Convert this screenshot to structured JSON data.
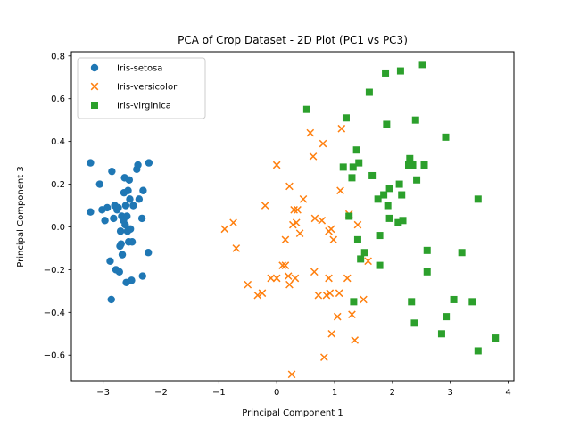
{
  "chart_data": {
    "type": "scatter",
    "title": "PCA of Crop Dataset - 2D Plot (PC1 vs PC3)",
    "xlabel": "Principal Component 1",
    "ylabel": "Principal Component 3",
    "xlim": [
      -3.55,
      4.1
    ],
    "ylim": [
      -0.72,
      0.82
    ],
    "xticks": [
      -3,
      -2,
      -1,
      0,
      1,
      2,
      3,
      4
    ],
    "yticks": [
      -0.6,
      -0.4,
      -0.2,
      0.0,
      0.2,
      0.4,
      0.6,
      0.8
    ],
    "grid": false,
    "legend_position": "upper-left",
    "series": [
      {
        "name": "Iris-setosa",
        "marker": "circle",
        "color": "#1f77b4",
        "points": [
          [
            -3.22,
            0.3
          ],
          [
            -3.22,
            0.07
          ],
          [
            -3.06,
            0.2
          ],
          [
            -3.02,
            0.08
          ],
          [
            -2.97,
            0.03
          ],
          [
            -2.93,
            0.09
          ],
          [
            -2.88,
            -0.16
          ],
          [
            -2.86,
            -0.34
          ],
          [
            -2.85,
            0.26
          ],
          [
            -2.82,
            0.04
          ],
          [
            -2.8,
            0.1
          ],
          [
            -2.78,
            -0.2
          ],
          [
            -2.76,
            0.08
          ],
          [
            -2.74,
            0.09
          ],
          [
            -2.72,
            -0.21
          ],
          [
            -2.71,
            -0.09
          ],
          [
            -2.7,
            -0.02
          ],
          [
            -2.69,
            -0.08
          ],
          [
            -2.68,
            0.05
          ],
          [
            -2.67,
            -0.13
          ],
          [
            -2.65,
            0.03
          ],
          [
            -2.64,
            0.16
          ],
          [
            -2.63,
            0.23
          ],
          [
            -2.62,
            0.01
          ],
          [
            -2.61,
            0.1
          ],
          [
            -2.6,
            -0.26
          ],
          [
            -2.59,
            0.05
          ],
          [
            -2.58,
            -0.02
          ],
          [
            -2.57,
            0.17
          ],
          [
            -2.56,
            -0.07
          ],
          [
            -2.55,
            0.22
          ],
          [
            -2.54,
            0.13
          ],
          [
            -2.53,
            -0.01
          ],
          [
            -2.51,
            -0.25
          ],
          [
            -2.5,
            -0.07
          ],
          [
            -2.48,
            0.1
          ],
          [
            -2.42,
            0.27
          ],
          [
            -2.4,
            0.29
          ],
          [
            -2.38,
            0.13
          ],
          [
            -2.33,
            0.04
          ],
          [
            -2.32,
            -0.23
          ],
          [
            -2.31,
            0.17
          ],
          [
            -2.22,
            -0.12
          ],
          [
            -2.21,
            0.3
          ]
        ]
      },
      {
        "name": "Iris-versicolor",
        "marker": "x",
        "color": "#ff7f0e",
        "points": [
          [
            -0.9,
            -0.01
          ],
          [
            -0.75,
            0.02
          ],
          [
            -0.7,
            -0.1
          ],
          [
            -0.5,
            -0.27
          ],
          [
            -0.33,
            -0.32
          ],
          [
            -0.25,
            -0.31
          ],
          [
            -0.2,
            0.1
          ],
          [
            -0.1,
            -0.24
          ],
          [
            0.0,
            0.29
          ],
          [
            0.0,
            -0.24
          ],
          [
            0.1,
            -0.18
          ],
          [
            0.15,
            -0.18
          ],
          [
            0.15,
            -0.06
          ],
          [
            0.2,
            -0.23
          ],
          [
            0.22,
            0.19
          ],
          [
            0.22,
            -0.27
          ],
          [
            0.28,
            0.01
          ],
          [
            0.3,
            0.08
          ],
          [
            0.32,
            -0.24
          ],
          [
            0.34,
            0.02
          ],
          [
            0.36,
            0.08
          ],
          [
            0.4,
            -0.03
          ],
          [
            0.46,
            0.13
          ],
          [
            0.26,
            -0.69
          ],
          [
            0.58,
            0.44
          ],
          [
            0.63,
            0.33
          ],
          [
            0.65,
            -0.21
          ],
          [
            0.66,
            0.04
          ],
          [
            0.72,
            -0.32
          ],
          [
            0.78,
            0.03
          ],
          [
            0.8,
            0.39
          ],
          [
            0.82,
            -0.61
          ],
          [
            0.86,
            -0.32
          ],
          [
            0.9,
            -0.02
          ],
          [
            0.9,
            -0.24
          ],
          [
            0.92,
            -0.31
          ],
          [
            0.94,
            -0.01
          ],
          [
            0.95,
            -0.5
          ],
          [
            0.98,
            -0.06
          ],
          [
            1.05,
            -0.42
          ],
          [
            1.08,
            -0.31
          ],
          [
            1.1,
            0.17
          ],
          [
            1.12,
            0.46
          ],
          [
            1.22,
            -0.24
          ],
          [
            1.25,
            0.06
          ],
          [
            1.3,
            -0.41
          ],
          [
            1.35,
            -0.53
          ],
          [
            1.4,
            0.01
          ],
          [
            1.5,
            -0.34
          ],
          [
            1.58,
            -0.16
          ]
        ]
      },
      {
        "name": "Iris-virginica",
        "marker": "square",
        "color": "#2ca02c",
        "points": [
          [
            0.52,
            0.55
          ],
          [
            1.15,
            0.28
          ],
          [
            1.2,
            0.51
          ],
          [
            1.25,
            0.05
          ],
          [
            1.3,
            0.23
          ],
          [
            1.32,
            0.28
          ],
          [
            1.33,
            -0.35
          ],
          [
            1.38,
            0.36
          ],
          [
            1.4,
            -0.06
          ],
          [
            1.42,
            0.3
          ],
          [
            1.45,
            -0.15
          ],
          [
            1.52,
            -0.12
          ],
          [
            1.6,
            0.63
          ],
          [
            1.65,
            0.24
          ],
          [
            1.75,
            0.13
          ],
          [
            1.78,
            -0.04
          ],
          [
            1.78,
            -0.18
          ],
          [
            1.85,
            0.15
          ],
          [
            1.88,
            0.72
          ],
          [
            1.9,
            0.48
          ],
          [
            1.92,
            0.1
          ],
          [
            1.95,
            0.18
          ],
          [
            1.95,
            0.04
          ],
          [
            2.1,
            0.02
          ],
          [
            2.12,
            0.2
          ],
          [
            2.14,
            0.73
          ],
          [
            2.16,
            0.15
          ],
          [
            2.18,
            0.03
          ],
          [
            2.28,
            0.29
          ],
          [
            2.3,
            0.32
          ],
          [
            2.33,
            -0.35
          ],
          [
            2.35,
            0.29
          ],
          [
            2.38,
            -0.45
          ],
          [
            2.4,
            0.5
          ],
          [
            2.42,
            0.22
          ],
          [
            2.52,
            0.76
          ],
          [
            2.55,
            0.29
          ],
          [
            2.6,
            -0.11
          ],
          [
            2.6,
            -0.21
          ],
          [
            2.85,
            -0.5
          ],
          [
            2.92,
            0.42
          ],
          [
            2.93,
            -0.42
          ],
          [
            3.06,
            -0.34
          ],
          [
            3.2,
            -0.12
          ],
          [
            3.38,
            -0.35
          ],
          [
            3.48,
            0.13
          ],
          [
            3.48,
            -0.58
          ],
          [
            3.78,
            -0.52
          ]
        ]
      }
    ]
  }
}
